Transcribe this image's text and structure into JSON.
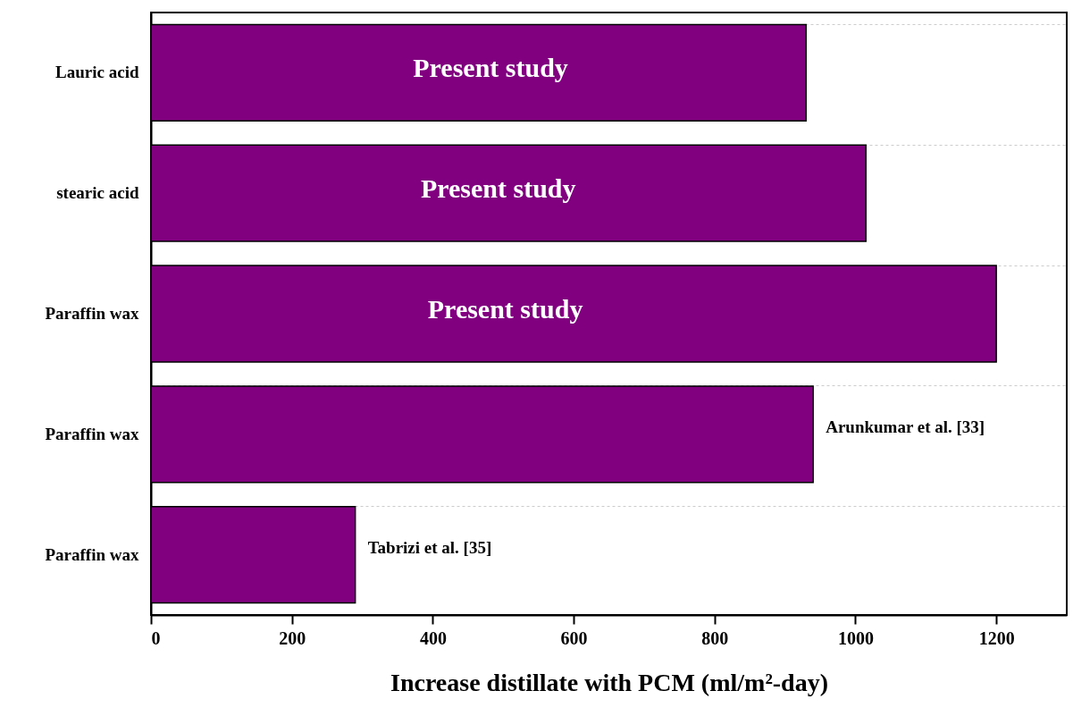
{
  "chart_data": {
    "type": "bar",
    "orientation": "horizontal",
    "xlabel": "Increase distillate with PCM (ml/m²-day)",
    "categories": [
      "Lauric acid",
      "stearic acid",
      "Paraffin wax",
      "Paraffin wax",
      "Paraffin wax"
    ],
    "values": [
      930,
      1015,
      1200,
      940,
      290
    ],
    "color": "#800080",
    "xlim": [
      0,
      1300
    ],
    "xticks": [
      0,
      200,
      400,
      600,
      800,
      1000,
      1200
    ],
    "grid": "y",
    "annotations": [
      {
        "text": "Present study",
        "x": 482,
        "y": "Lauric acid"
      },
      {
        "text": "Present study",
        "x": 493,
        "y": "stearic acid"
      },
      {
        "text": "Present study",
        "x": 503,
        "y": "Paraffin wax"
      },
      "Arunkumar et al. [33]",
      "Tabrizi et al. [35]"
    ]
  }
}
